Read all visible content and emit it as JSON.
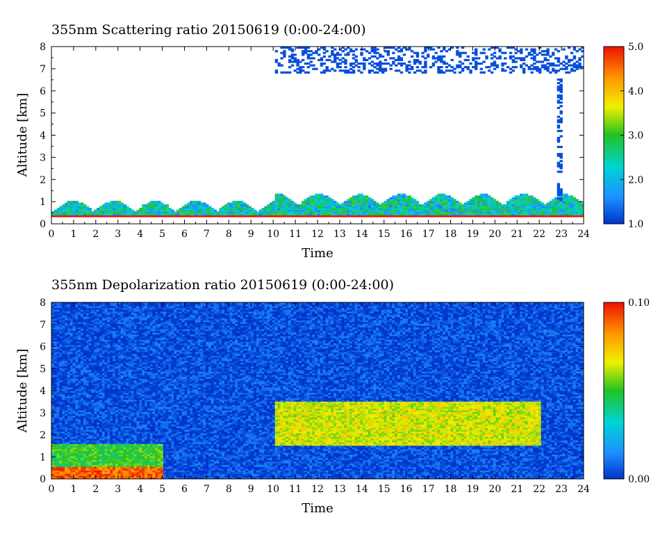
{
  "chart_data": [
    {
      "type": "heatmap",
      "title": "355nm Scattering ratio  20150619 (0:00-24:00)",
      "xlabel": "Time",
      "ylabel": "Altitude [km]",
      "xlim": [
        0,
        24
      ],
      "ylim": [
        0,
        8
      ],
      "x_ticks": [
        "0",
        "1",
        "2",
        "3",
        "4",
        "5",
        "6",
        "7",
        "8",
        "9",
        "10",
        "11",
        "12",
        "13",
        "14",
        "15",
        "16",
        "17",
        "18",
        "19",
        "20",
        "21",
        "22",
        "23",
        "24"
      ],
      "y_ticks": [
        "0",
        "1",
        "2",
        "3",
        "4",
        "5",
        "6",
        "7",
        "8"
      ],
      "colorbar": {
        "range": [
          1.0,
          5.0
        ],
        "tick_labels": [
          "1.0",
          "2.0",
          "3.0",
          "4.0",
          "5.0"
        ],
        "tick_values": [
          1.0,
          2.0,
          3.0,
          4.0,
          5.0
        ],
        "colors": [
          "#0033cc",
          "#1e90ff",
          "#00d4d4",
          "#22c222",
          "#f0f000",
          "#ff9900",
          "#ee1100"
        ]
      },
      "features": [
        {
          "name": "boundary layer",
          "time": [
            0,
            24
          ],
          "altitude": [
            0.3,
            1.6
          ],
          "value": 2.2
        },
        {
          "name": "cirrus",
          "time": [
            10,
            24
          ],
          "altitude": [
            6.8,
            8.0
          ],
          "value": 1.2
        },
        {
          "name": "plume",
          "time": [
            22.7,
            23.0
          ],
          "altitude": [
            1.0,
            6.5
          ],
          "value": 1.2
        },
        {
          "name": "near-surface line",
          "time": [
            0,
            24
          ],
          "altitude": [
            0.25,
            0.25
          ],
          "value": 5.0
        }
      ]
    },
    {
      "type": "heatmap",
      "title": "355nm Depolarization ratio  20150619 (0:00-24:00)",
      "xlabel": "Time",
      "ylabel": "Altitude [km]",
      "xlim": [
        0,
        24
      ],
      "ylim": [
        0,
        8
      ],
      "x_ticks": [
        "0",
        "1",
        "2",
        "3",
        "4",
        "5",
        "6",
        "7",
        "8",
        "9",
        "10",
        "11",
        "12",
        "13",
        "14",
        "15",
        "16",
        "17",
        "18",
        "19",
        "20",
        "21",
        "22",
        "23",
        "24"
      ],
      "y_ticks": [
        "0",
        "1",
        "2",
        "3",
        "4",
        "5",
        "6",
        "7",
        "8"
      ],
      "colorbar": {
        "range": [
          0.0,
          0.1
        ],
        "tick_labels": [
          "0.00",
          "0.10"
        ],
        "tick_values": [
          0.0,
          0.1
        ],
        "colors": [
          "#0033cc",
          "#1e90ff",
          "#00d4d4",
          "#22c222",
          "#f0f000",
          "#ff9900",
          "#ee1100"
        ]
      },
      "features": [
        {
          "name": "background",
          "time": [
            0,
            24
          ],
          "altitude": [
            0,
            8
          ],
          "value": 0.005
        },
        {
          "name": "dust layer",
          "time": [
            10,
            22
          ],
          "altitude": [
            1.5,
            3.5
          ],
          "value": 0.065
        },
        {
          "name": "low layer",
          "time": [
            0,
            5
          ],
          "altitude": [
            0,
            1.6
          ],
          "value": 0.05
        },
        {
          "name": "surface dust",
          "time": [
            0,
            5
          ],
          "altitude": [
            0,
            0.5
          ],
          "value": 0.09
        }
      ]
    }
  ]
}
